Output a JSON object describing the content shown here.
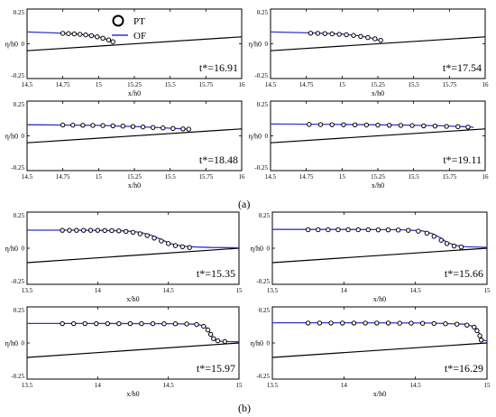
{
  "legend": {
    "pt_label": "PT",
    "of_label": "OF"
  },
  "part_labels": {
    "a": "(a)",
    "b": "(b)"
  },
  "colors": {
    "of_line": "#3333cc",
    "pt_marker": "#000000",
    "slope_line": "#000000",
    "frame": "#000000"
  },
  "chart_data": [
    {
      "type": "line",
      "part": "a",
      "time_label": "t*=16.91",
      "xlabel": "x/h0",
      "ylabel": "η/h0",
      "xlim": [
        14.5,
        16
      ],
      "ylim": [
        -0.25,
        0.25
      ],
      "xticks": [
        "14.5",
        "14.75",
        "15",
        "15.25",
        "15.5",
        "15.75",
        "16"
      ],
      "yticks": [
        "-0.25",
        "0",
        "0.25"
      ],
      "slope_line": [
        [
          14.5,
          -0.05
        ],
        [
          16,
          0.05
        ]
      ],
      "series": [
        {
          "name": "OF",
          "x": [
            14.5,
            14.7,
            14.85,
            14.95,
            15.02,
            15.06,
            15.09
          ],
          "y": [
            0.085,
            0.078,
            0.07,
            0.06,
            0.045,
            0.03,
            0.013
          ]
        },
        {
          "name": "PT",
          "x": [
            14.75,
            14.79,
            14.83,
            14.87,
            14.91,
            14.95,
            14.99,
            15.03,
            15.07,
            15.1
          ],
          "y": [
            0.075,
            0.073,
            0.071,
            0.068,
            0.064,
            0.058,
            0.05,
            0.04,
            0.028,
            0.015
          ]
        }
      ]
    },
    {
      "type": "line",
      "part": "a",
      "time_label": "t*=17.54",
      "xlabel": "x/h0",
      "ylabel": "η/h0",
      "xlim": [
        14.5,
        16
      ],
      "ylim": [
        -0.25,
        0.25
      ],
      "xticks": [
        "14.5",
        "14.75",
        "15",
        "15.25",
        "15.5",
        "15.75",
        "16"
      ],
      "yticks": [
        "-0.25",
        "0",
        "0.25"
      ],
      "slope_line": [
        [
          14.5,
          -0.05
        ],
        [
          16,
          0.05
        ]
      ],
      "series": [
        {
          "name": "OF",
          "x": [
            14.5,
            14.8,
            15.0,
            15.12,
            15.2,
            15.25,
            15.28
          ],
          "y": [
            0.085,
            0.078,
            0.07,
            0.058,
            0.042,
            0.028,
            0.02
          ]
        },
        {
          "name": "PT",
          "x": [
            14.78,
            14.83,
            14.88,
            14.93,
            14.98,
            15.03,
            15.08,
            15.13,
            15.18,
            15.23,
            15.27
          ],
          "y": [
            0.076,
            0.075,
            0.073,
            0.071,
            0.068,
            0.065,
            0.06,
            0.053,
            0.045,
            0.036,
            0.025
          ]
        }
      ]
    },
    {
      "type": "line",
      "part": "a",
      "time_label": "t*=18.48",
      "xlabel": "x/h0",
      "ylabel": "η/h0",
      "xlim": [
        14.5,
        16
      ],
      "ylim": [
        -0.25,
        0.25
      ],
      "xticks": [
        "14.5",
        "14.75",
        "15",
        "15.25",
        "15.5",
        "15.75",
        "16"
      ],
      "yticks": [
        "-0.25",
        "0",
        "0.25"
      ],
      "slope_line": [
        [
          14.5,
          -0.05
        ],
        [
          16,
          0.05
        ]
      ],
      "series": [
        {
          "name": "OF",
          "x": [
            14.5,
            15.0,
            15.3,
            15.5,
            15.6,
            15.63
          ],
          "y": [
            0.08,
            0.075,
            0.065,
            0.055,
            0.05,
            0.048
          ]
        },
        {
          "name": "PT",
          "x": [
            14.75,
            14.82,
            14.89,
            14.96,
            15.03,
            15.1,
            15.17,
            15.24,
            15.31,
            15.38,
            15.45,
            15.52,
            15.59,
            15.63
          ],
          "y": [
            0.078,
            0.077,
            0.076,
            0.075,
            0.074,
            0.072,
            0.07,
            0.067,
            0.064,
            0.06,
            0.057,
            0.053,
            0.05,
            0.048
          ]
        }
      ]
    },
    {
      "type": "line",
      "part": "a",
      "time_label": "t*=19.11",
      "xlabel": "x/h0",
      "ylabel": "η/h0",
      "xlim": [
        14.5,
        16
      ],
      "ylim": [
        -0.25,
        0.25
      ],
      "xticks": [
        "14.5",
        "14.75",
        "15",
        "15.25",
        "15.5",
        "15.75",
        "16"
      ],
      "yticks": [
        "-0.25",
        "0",
        "0.25"
      ],
      "slope_line": [
        [
          14.5,
          -0.05
        ],
        [
          16,
          0.05
        ]
      ],
      "series": [
        {
          "name": "OF",
          "x": [
            14.5,
            15.0,
            15.4,
            15.7,
            15.85,
            15.92
          ],
          "y": [
            0.085,
            0.082,
            0.078,
            0.072,
            0.066,
            0.062
          ]
        },
        {
          "name": "PT",
          "x": [
            14.77,
            14.85,
            14.93,
            15.01,
            15.09,
            15.17,
            15.25,
            15.33,
            15.41,
            15.49,
            15.57,
            15.65,
            15.73,
            15.81,
            15.88
          ],
          "y": [
            0.082,
            0.081,
            0.08,
            0.08,
            0.079,
            0.078,
            0.077,
            0.076,
            0.075,
            0.074,
            0.072,
            0.07,
            0.068,
            0.066,
            0.063
          ]
        }
      ]
    },
    {
      "type": "line",
      "part": "b",
      "time_label": "t*=15.35",
      "xlabel": "x/h0",
      "ylabel": "η/h0",
      "xlim": [
        13.5,
        15
      ],
      "ylim": [
        -0.25,
        0.25
      ],
      "xticks": [
        "13.5",
        "14",
        "14.5",
        "15"
      ],
      "yticks": [
        "-0.25",
        "0",
        "0.25"
      ],
      "slope_line": [
        [
          13.5,
          -0.1
        ],
        [
          15,
          0.0
        ]
      ],
      "series": [
        {
          "name": "OF",
          "x": [
            13.5,
            13.8,
            14.0,
            14.2,
            14.3,
            14.38,
            14.45,
            14.52,
            14.6,
            14.7,
            14.8,
            15.0
          ],
          "y": [
            0.125,
            0.125,
            0.124,
            0.12,
            0.11,
            0.09,
            0.06,
            0.03,
            0.015,
            0.008,
            0.005,
            0.003
          ]
        },
        {
          "name": "PT",
          "x": [
            13.75,
            13.8,
            13.85,
            13.9,
            13.95,
            14.0,
            14.05,
            14.1,
            14.15,
            14.2,
            14.25,
            14.3,
            14.35,
            14.4,
            14.45,
            14.5,
            14.55,
            14.6,
            14.65
          ],
          "y": [
            0.124,
            0.124,
            0.124,
            0.124,
            0.124,
            0.124,
            0.123,
            0.122,
            0.12,
            0.116,
            0.11,
            0.1,
            0.088,
            0.07,
            0.05,
            0.032,
            0.018,
            0.01,
            0.005
          ]
        }
      ]
    },
    {
      "type": "line",
      "part": "b",
      "time_label": "t*=15.66",
      "xlabel": "x/h0",
      "ylabel": "η/h0",
      "xlim": [
        13.5,
        15
      ],
      "ylim": [
        -0.25,
        0.25
      ],
      "xticks": [
        "13.5",
        "14",
        "14.5",
        "15"
      ],
      "yticks": [
        "-0.25",
        "0",
        "0.25"
      ],
      "slope_line": [
        [
          13.5,
          -0.1
        ],
        [
          15,
          0.0
        ]
      ],
      "series": [
        {
          "name": "OF",
          "x": [
            13.5,
            14.0,
            14.4,
            14.55,
            14.62,
            14.68,
            14.72,
            14.78,
            14.85,
            15.0
          ],
          "y": [
            0.13,
            0.13,
            0.128,
            0.12,
            0.1,
            0.07,
            0.04,
            0.02,
            0.01,
            0.006
          ]
        },
        {
          "name": "PT",
          "x": [
            13.75,
            13.82,
            13.89,
            13.96,
            14.03,
            14.1,
            14.17,
            14.24,
            14.31,
            14.38,
            14.45,
            14.52,
            14.58,
            14.63,
            14.68,
            14.72,
            14.77,
            14.82
          ],
          "y": [
            0.128,
            0.128,
            0.128,
            0.128,
            0.128,
            0.128,
            0.128,
            0.127,
            0.127,
            0.126,
            0.124,
            0.118,
            0.104,
            0.082,
            0.055,
            0.032,
            0.015,
            0.008
          ]
        }
      ]
    },
    {
      "type": "line",
      "part": "b",
      "time_label": "t*=15.97",
      "xlabel": "x/h0",
      "ylabel": "η/h0",
      "xlim": [
        13.5,
        15
      ],
      "ylim": [
        -0.25,
        0.25
      ],
      "xticks": [
        "13.5",
        "14",
        "14.5",
        "15"
      ],
      "yticks": [
        "-0.25",
        "0",
        "0.25"
      ],
      "slope_line": [
        [
          13.5,
          -0.1
        ],
        [
          15,
          0.0
        ]
      ],
      "series": [
        {
          "name": "OF",
          "x": [
            13.5,
            14.0,
            14.5,
            14.7,
            14.76,
            14.79,
            14.81,
            14.84,
            14.9,
            15.0
          ],
          "y": [
            0.135,
            0.135,
            0.134,
            0.13,
            0.115,
            0.08,
            0.04,
            0.015,
            0.01,
            0.008
          ]
        },
        {
          "name": "PT",
          "x": [
            13.75,
            13.83,
            13.91,
            13.99,
            14.07,
            14.15,
            14.23,
            14.31,
            14.39,
            14.47,
            14.55,
            14.63,
            14.7,
            14.75,
            14.78,
            14.8,
            14.82,
            14.85,
            14.9
          ],
          "y": [
            0.134,
            0.134,
            0.134,
            0.134,
            0.134,
            0.134,
            0.134,
            0.134,
            0.134,
            0.133,
            0.133,
            0.132,
            0.128,
            0.115,
            0.09,
            0.06,
            0.03,
            0.015,
            0.01
          ]
        }
      ]
    },
    {
      "type": "line",
      "part": "b",
      "time_label": "t*=16.29",
      "xlabel": "x/h0",
      "ylabel": "η/h0",
      "xlim": [
        13.5,
        15
      ],
      "ylim": [
        -0.25,
        0.25
      ],
      "xticks": [
        "13.5",
        "14",
        "14.5",
        "15"
      ],
      "yticks": [
        "-0.25",
        "0",
        "0.25"
      ],
      "slope_line": [
        [
          13.5,
          -0.1
        ],
        [
          15,
          0.0
        ]
      ],
      "series": [
        {
          "name": "OF",
          "x": [
            13.5,
            14.0,
            14.6,
            14.85,
            14.92,
            14.95,
            14.97,
            15.0
          ],
          "y": [
            0.14,
            0.14,
            0.138,
            0.13,
            0.11,
            0.06,
            0.02,
            0.015
          ]
        },
        {
          "name": "PT",
          "x": [
            13.75,
            13.83,
            13.91,
            13.99,
            14.07,
            14.15,
            14.23,
            14.31,
            14.39,
            14.47,
            14.55,
            14.63,
            14.71,
            14.79,
            14.86,
            14.91,
            14.93,
            14.95,
            14.96
          ],
          "y": [
            0.138,
            0.138,
            0.138,
            0.138,
            0.138,
            0.138,
            0.138,
            0.138,
            0.137,
            0.137,
            0.136,
            0.135,
            0.133,
            0.13,
            0.124,
            0.11,
            0.085,
            0.05,
            0.02
          ]
        }
      ]
    }
  ]
}
